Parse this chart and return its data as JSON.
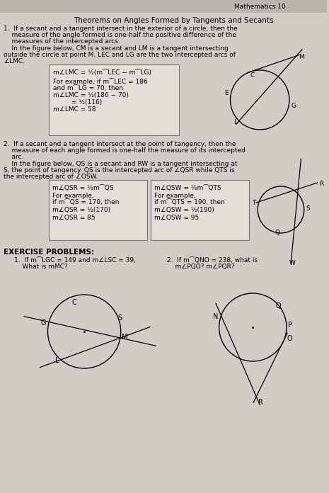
{
  "bg_color": "#d0cdc6",
  "header_bg": "#b8b5ae",
  "box_bg": "#e2dfd8",
  "title": "Theorems on Angles Formed by Tangents and Secants",
  "t1_line1": "1.  If a secant and a tangent intersect in the exterior of a circle, then the",
  "t1_line2": "    measure of the angle formed is one-half the positive difference of the",
  "t1_line3": "    measures of the intercepted arcs.",
  "t1_desc1": "    In the figure below, CM is a secant and LM is a tangent intersecting",
  "t1_desc2": "outside the circle at point M. LEC and LG are the two intercepted arcs of",
  "t1_desc3": "∠LMC.",
  "box1_l1": "m∠LMC = ½(m⁀LEC − m⁀LG)",
  "box1_l2": "For example, if m⁀LEC = 186",
  "box1_l3": "and m⁀LG = 70, then",
  "box1_l4": "m∠LMC = ½(186 − 70)",
  "box1_l5": "         = ½(116)",
  "box1_l6": "m∠LMC = 58",
  "t2_line1": "2.  If a secant and a tangent intersect at the point of tangency, then the",
  "t2_line2": "    measure of each angle formed is one-half the measure of its intercepted",
  "t2_line3": "    arc.",
  "t2_desc1": "    In the figure below, QS is a secant and RW is a tangent intersecting at",
  "t2_desc2": "S, the point of tangency. QS is the intercepted arc of ∠QSR while QTS is",
  "t2_desc3": "the intercepted arc of ∠OSW.",
  "box2a_l1": "m∠QSR = ½m⁀QS",
  "box2a_l2": "For example,",
  "box2a_l3": "if m⁀QS = 170, then",
  "box2a_l4": "m∠QSR = ½(170)",
  "box2a_l5": "m∠QSR = 85",
  "box2b_l1": "m∠QSW = ½m⁀QTS",
  "box2b_l2": "For example,",
  "box2b_l3": "if m⁀QTS = 190, then",
  "box2b_l4": "m∠QSW = ½(190)",
  "box2b_l5": "m∠QSW = 95",
  "ex_header": "EXERCISE PROBLEMS:",
  "ex1_l1": "1.  If m⁀LGC = 149 and m∠LSC = 39,",
  "ex1_l2": "    What is mMC?",
  "ex2_l1": "2.  If m⁀QNO = 238, what is",
  "ex2_l2": "    m∠PQO? m∠PQR?",
  "header_text": "Mathematics 10",
  "fs": 6.5,
  "fst": 7.5
}
